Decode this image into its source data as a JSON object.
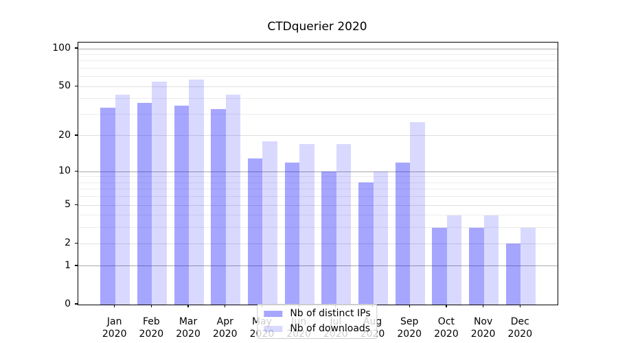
{
  "title": "CTDquerier 2020",
  "chart_data": {
    "type": "bar",
    "title": "CTDquerier 2020",
    "categories": [
      "Jan",
      "Feb",
      "Mar",
      "Apr",
      "May",
      "Jun",
      "Jul",
      "Aug",
      "Sep",
      "Oct",
      "Nov",
      "Dec"
    ],
    "category_year": "2020",
    "series": [
      {
        "name": "Nb of distinct IPs",
        "color": "rgba(0,0,255,0.35)",
        "values": [
          34,
          37,
          35,
          33,
          13,
          12,
          10,
          8,
          12,
          3,
          3,
          2
        ]
      },
      {
        "name": "Nb of downloads",
        "color": "rgba(0,0,255,0.15)",
        "values": [
          43,
          55,
          57,
          43,
          18,
          17,
          17,
          10,
          26,
          4,
          4,
          3
        ]
      }
    ],
    "y_scale": "log1p",
    "y_major_ticks": [
      0,
      1,
      2,
      5,
      10,
      20,
      50,
      100
    ],
    "y_minor_ticks": [
      3,
      4,
      6,
      7,
      8,
      9,
      30,
      40,
      60,
      70,
      80,
      90
    ],
    "ylim": [
      0,
      112
    ],
    "xlim": [
      -1,
      12
    ],
    "bar_width": 0.4,
    "grid": "horizontal-only",
    "legend_position": "lower center",
    "colors": {
      "decade_gridline": "#a8a8a8",
      "major_gridline": "#dfdfdf",
      "minor_gridline": "#ececec",
      "spine": "#000000",
      "text": "#000000",
      "background": "#ffffff"
    }
  }
}
